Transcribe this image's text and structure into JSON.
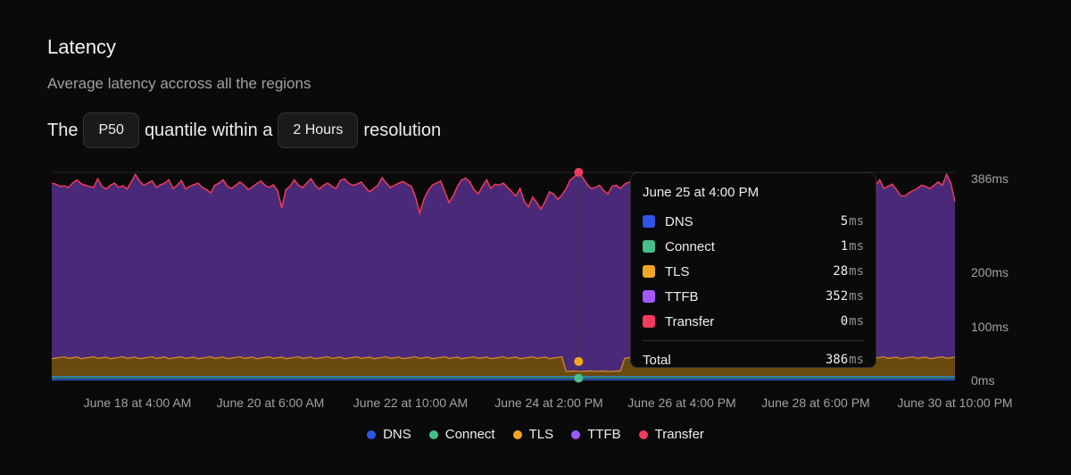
{
  "header": {
    "title": "Latency",
    "subtitle": "Average latency accross all the regions"
  },
  "controls": {
    "prefix": "The",
    "quantile": "P50",
    "middle": "quantile within a",
    "resolution": "2 Hours",
    "suffix": "resolution"
  },
  "colors": {
    "dns": "#2f55e6",
    "connect": "#45c08a",
    "tls": "#f5a524",
    "ttfb": "#a259ff",
    "transfer": "#ef3b5c",
    "ttfb_fill": "#4a2a78",
    "tls_fill": "#6b4a10"
  },
  "chart_data": {
    "type": "area",
    "stacked": true,
    "y_ticks": [
      "0ms",
      "100ms",
      "200ms",
      "386ms"
    ],
    "ylim": [
      0,
      386
    ],
    "x_ticks": [
      "June 18 at 4:00 AM",
      "June 20 at 6:00 AM",
      "June 22 at 10:00 AM",
      "June 24 at 2:00 PM",
      "June 26 at 4:00 PM",
      "June 28 at 6:00 PM",
      "June 30 at 10:00 PM"
    ],
    "legend_position": "bottom-center",
    "series": [
      {
        "name": "DNS",
        "key": "dns"
      },
      {
        "name": "Connect",
        "key": "connect"
      },
      {
        "name": "TLS",
        "key": "tls"
      },
      {
        "name": "TTFB",
        "key": "ttfb"
      },
      {
        "name": "Transfer",
        "key": "transfer"
      }
    ],
    "total_profile": [
      366,
      364,
      360,
      361,
      358,
      366,
      372,
      365,
      362,
      360,
      358,
      374,
      360,
      355,
      362,
      366,
      358,
      361,
      355,
      368,
      382,
      370,
      362,
      366,
      370,
      358,
      363,
      366,
      372,
      356,
      362,
      371,
      355,
      360,
      363,
      366,
      358,
      354,
      348,
      362,
      366,
      372,
      360,
      356,
      362,
      368,
      362,
      354,
      359,
      365,
      370,
      362,
      358,
      363,
      352,
      320,
      354,
      360,
      372,
      362,
      358,
      366,
      374,
      362,
      355,
      362,
      366,
      360,
      356,
      371,
      374,
      366,
      362,
      364,
      368,
      358,
      350,
      356,
      362,
      376,
      366,
      358,
      362,
      366,
      369,
      364,
      360,
      340,
      310,
      336,
      352,
      362,
      366,
      370,
      350,
      330,
      342,
      360,
      372,
      375,
      368,
      354,
      346,
      360,
      372,
      356,
      364,
      362,
      366,
      358,
      350,
      342,
      356,
      332,
      322,
      340,
      330,
      318,
      332,
      350,
      346,
      336,
      344,
      356,
      372,
      378,
      386,
      376,
      364,
      356,
      358,
      362,
      352,
      346,
      360,
      362,
      356,
      364,
      368,
      366,
      362,
      354,
      352,
      358,
      368,
      362,
      354,
      356,
      360,
      370,
      358,
      346,
      356,
      362,
      356,
      366,
      370,
      362,
      358,
      366,
      362,
      356,
      364,
      372,
      370,
      362,
      356,
      360,
      364,
      374,
      378,
      366,
      358,
      364,
      370,
      364,
      356,
      364,
      372,
      364,
      362,
      356,
      360,
      378,
      364,
      350,
      338,
      370,
      356,
      354,
      362,
      368,
      364,
      378,
      348,
      366,
      358,
      362,
      372,
      356,
      360,
      364,
      354,
      343,
      342,
      348,
      352,
      356,
      362,
      360,
      356,
      362,
      368,
      362,
      382,
      366,
      332
    ],
    "tls_level": 35,
    "connect_level": 4,
    "dns_level": 3,
    "tls_dip_range": [
      0.565,
      0.63
    ],
    "tls_dip_value": 10,
    "highlight": {
      "label": "June 25 at 4:00 PM",
      "total": 386,
      "breakdown": {
        "tls": 28,
        "connect": 1
      }
    }
  },
  "tooltip": {
    "title": "June 25 at 4:00 PM",
    "unit": "ms",
    "rows": [
      {
        "label": "DNS",
        "value": "5",
        "key": "dns"
      },
      {
        "label": "Connect",
        "value": "1",
        "key": "connect"
      },
      {
        "label": "TLS",
        "value": "28",
        "key": "tls"
      },
      {
        "label": "TTFB",
        "value": "352",
        "key": "ttfb"
      },
      {
        "label": "Transfer",
        "value": "0",
        "key": "transfer"
      }
    ],
    "total_label": "Total",
    "total_value": "386"
  },
  "legend": [
    {
      "label": "DNS",
      "key": "dns"
    },
    {
      "label": "Connect",
      "key": "connect"
    },
    {
      "label": "TLS",
      "key": "tls"
    },
    {
      "label": "TTFB",
      "key": "ttfb"
    },
    {
      "label": "Transfer",
      "key": "transfer"
    }
  ]
}
